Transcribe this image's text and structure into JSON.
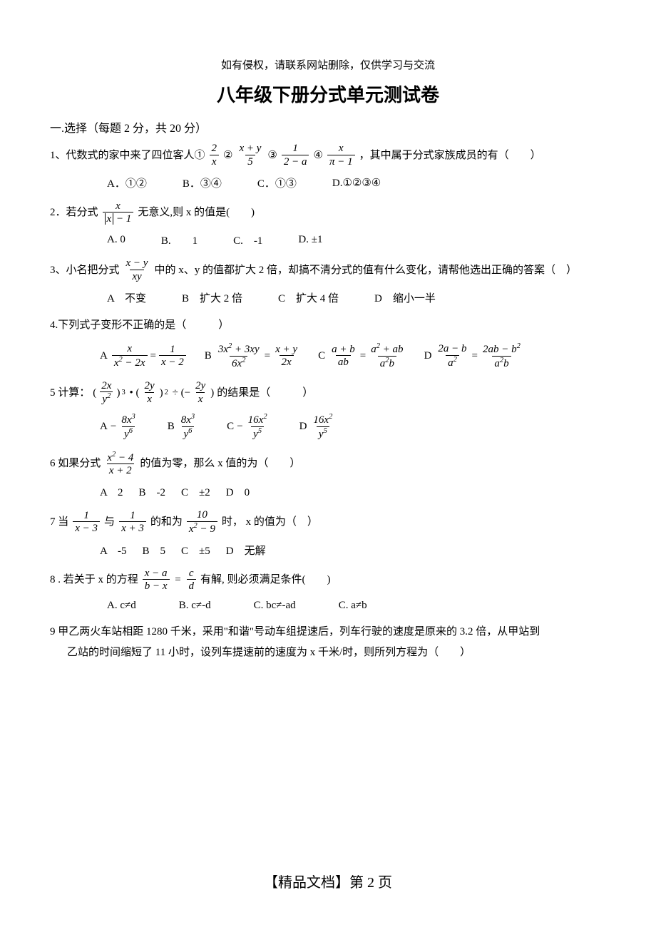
{
  "header_note": "如有侵权，请联系网站删除，仅供学习与交流",
  "title": "八年级下册分式单元测试卷",
  "section1_head": "一.选择（每题 2 分，共 20 分）",
  "q1": {
    "text_a": "1、代数式的家中来了四位客人①",
    "text_b": " ②",
    "text_c": " ③",
    "text_d": " ④",
    "text_e": "，其中属于分式家族成员的有（　　）",
    "optA": "A．①②",
    "optB": "B．③④",
    "optC": "C．①③",
    "optD": "D.①②③④"
  },
  "q2": {
    "text_a": "2．若分式",
    "text_b": "无意义,则 x 的值是(　　)",
    "optA": "A. 0",
    "optB": "B.　　1",
    "optC": "C.　-1",
    "optD": "D. ±1"
  },
  "q3": {
    "text_a": "3、小名把分式",
    "text_b": "中的 x、y 的值都扩大 2 倍，却搞不清分式的值有什么变化，请帮他选出正确的答案（　）",
    "optA": "A　不变",
    "optB": "B　扩大 2 倍",
    "optC": "C　扩大 4 倍",
    "optD": "D　缩小一半"
  },
  "q4": {
    "text": "4.下列式子变形不正确的是（　　　）",
    "A": "A",
    "B": "B",
    "C": "C",
    "D": "D"
  },
  "q5": {
    "text_a": "5 计算：",
    "text_b": "的结果是（　　　）",
    "A": "A",
    "B": "B",
    "C": "C",
    "D": "D"
  },
  "q6": {
    "text_a": "6 如果分式",
    "text_b": "的值为零，那么 x 值的为（　　）",
    "optA": "A　2",
    "optB": "B　-2",
    "optC": "C　±2",
    "optD": "D　0"
  },
  "q7": {
    "text_a": "7 当",
    "text_b": "与",
    "text_c": "的和为",
    "text_d": "时， x 的值为（　）",
    "optA": "A　-5",
    "optB": "B　5",
    "optC": "C　±5",
    "optD": "D　无解"
  },
  "q8": {
    "text_a": "8 . 若关于 x 的方程",
    "text_b": " 有解, 则必须满足条件(　　)",
    "optA": "A. c≠d",
    "optB": "B. c≠-d",
    "optC": "C. bc≠-ad",
    "optD": "C. a≠b"
  },
  "q9": {
    "line1": "9  甲乙两火车站相距 1280 千米，采用\"和谐\"号动车组提速后，列车行驶的速度是原来的 3.2 倍，从甲站到",
    "line2": "乙站的时间缩短了 11 小时，设列车提速前的速度为 x 千米/时，则所列方程为（　　）"
  },
  "footer": "【精品文档】第  2  页"
}
